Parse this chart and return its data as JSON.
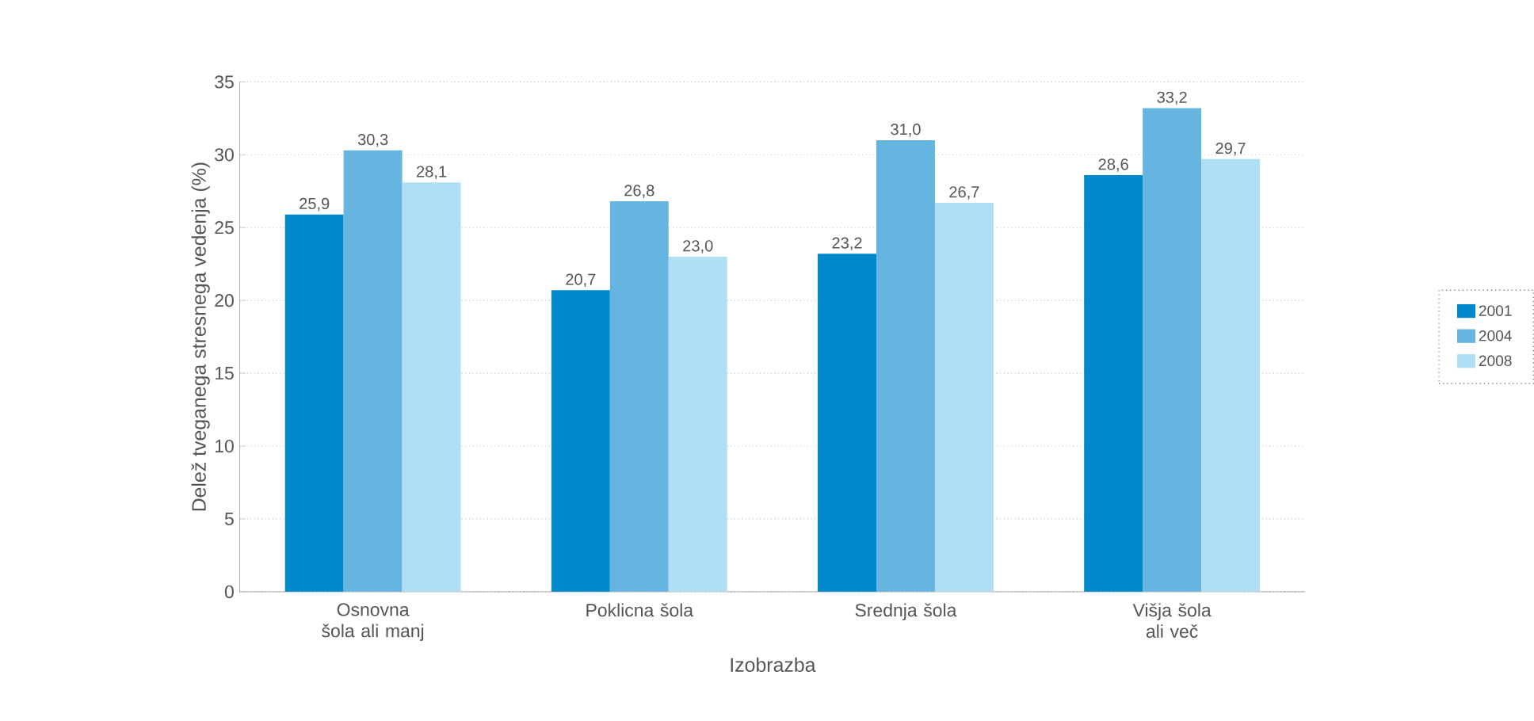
{
  "chart_data": {
    "type": "bar",
    "xlabel": "Izobrazba",
    "ylabel": "Delež tveganega stresnega vedenja (%)",
    "categories": [
      "Osnovna šola ali manj",
      "Poklicna šola",
      "Srednja šola",
      "Višja šola ali več"
    ],
    "series": [
      {
        "name": "2001",
        "color": "#0088cc",
        "values": [
          25.9,
          20.7,
          23.2,
          28.6
        ],
        "value_labels": [
          "25,9",
          "20,7",
          "23,2",
          "28,6"
        ]
      },
      {
        "name": "2004",
        "color": "#66b5e0",
        "values": [
          30.3,
          26.8,
          31.0,
          33.2
        ],
        "value_labels": [
          "30,3",
          "26,8",
          "31,0",
          "33,2"
        ]
      },
      {
        "name": "2008",
        "color": "#b0def3",
        "values": [
          28.1,
          23.0,
          26.7,
          29.7
        ],
        "value_labels": [
          "28,1",
          "23,0",
          "26,7",
          "29,7"
        ]
      }
    ],
    "ylim": [
      0,
      35
    ],
    "yticks": [
      0,
      5,
      10,
      15,
      20,
      25,
      30,
      35
    ],
    "grid": "y",
    "legend": "right"
  }
}
